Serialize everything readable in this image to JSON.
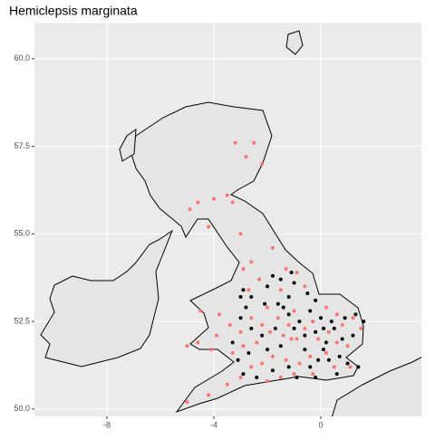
{
  "chart_data": {
    "type": "scatter",
    "title": "Hemiclepsis marginata",
    "xlim": [
      -10.71,
      3.76
    ],
    "ylim": [
      49.79,
      61.03
    ],
    "xticks": [
      -8,
      -4,
      0
    ],
    "yticks": [
      {
        "value": 50,
        "label": "50.0"
      },
      {
        "value": 52.5,
        "label": "52.5"
      },
      {
        "value": 55,
        "label": "55.0"
      },
      {
        "value": 57.5,
        "label": "57.5"
      },
      {
        "value": 60,
        "label": "60.0"
      }
    ],
    "grid": true,
    "series": [
      {
        "color": "#F8766D",
        "x": [
          -3.2,
          -2.5,
          -2.8,
          -2.2,
          -3.5,
          -4.0,
          -4.6,
          -4.9,
          -3.3,
          -4.2,
          -3.0,
          -2.6,
          -1.8,
          -2.9,
          -1.3,
          -0.9,
          -2.3,
          -2.7,
          -1.5,
          -0.6,
          -3.8,
          -3.4,
          -3.0,
          -2.6,
          -2.2,
          -2.0,
          -1.6,
          -1.2,
          -1.0,
          -0.6,
          -0.3,
          -1.9,
          -1.4,
          -0.9,
          -2.4,
          -2.9,
          -3.3,
          -4.1,
          -4.6,
          -3.9,
          0.3,
          0.8,
          1.2,
          1.5,
          0.6,
          1.0,
          0.2,
          -0.4,
          -0.8,
          -1.3,
          -1.8,
          -2.2,
          -2.6,
          -1.0,
          -0.3,
          0.5,
          1.1,
          -3.0,
          -3.5,
          -4.2,
          -2.0,
          -1.5,
          -5.0,
          -1.1,
          -0.1,
          0.2,
          0.6,
          -4.5,
          -5.0
        ],
        "values": [
          57.6,
          57.6,
          57.2,
          57.0,
          56.1,
          56.0,
          55.9,
          55.7,
          55.9,
          55.2,
          55.0,
          54.2,
          54.6,
          54.0,
          54.0,
          53.9,
          53.7,
          53.4,
          53.4,
          53.5,
          52.7,
          52.4,
          52.2,
          52.6,
          52.4,
          52.9,
          52.6,
          52.4,
          52.8,
          52.3,
          52.5,
          52.2,
          52.1,
          52.0,
          51.9,
          51.8,
          51.6,
          51.7,
          51.9,
          52.1,
          52.2,
          52.4,
          52.6,
          52.3,
          51.9,
          51.8,
          51.6,
          51.5,
          51.3,
          51.4,
          51.5,
          51.3,
          51.2,
          51.0,
          51.0,
          51.2,
          51.2,
          50.9,
          50.7,
          50.4,
          50.8,
          50.9,
          50.2,
          52.0,
          52.0,
          52.9,
          52.7,
          52.8,
          51.8
        ]
      },
      {
        "color": "#000000",
        "x": [
          -2.9,
          -2.6,
          -2.0,
          -1.5,
          -1.0,
          -0.5,
          -0.2,
          -1.2,
          -1.6,
          -2.1,
          -2.8,
          -3.0,
          -2.6,
          -2.2,
          -1.7,
          -1.2,
          -0.8,
          -0.4,
          0.0,
          0.4,
          0.9,
          1.3,
          1.6,
          1.2,
          0.8,
          0.5,
          0.1,
          -0.2,
          -0.6,
          -1.0,
          -1.5,
          -2.0,
          -2.7,
          -3.1,
          -2.9,
          -2.4,
          -1.8,
          -1.2,
          -0.6,
          -0.1,
          0.3,
          0.7,
          1.0,
          1.4,
          0.1,
          -0.4,
          -0.9,
          -3.0,
          -1.8,
          -1.1,
          0.2,
          -3.3,
          -0.2,
          0.6,
          -1.4
        ],
        "values": [
          53.4,
          53.2,
          53.5,
          53.7,
          53.6,
          53.3,
          53.1,
          53.2,
          53.0,
          53.0,
          52.9,
          52.6,
          52.3,
          52.1,
          52.3,
          52.7,
          52.5,
          52.8,
          52.6,
          52.5,
          52.6,
          52.7,
          52.5,
          52.1,
          52.0,
          52.3,
          52.3,
          52.2,
          52.1,
          52.3,
          51.8,
          51.7,
          51.6,
          51.4,
          51.0,
          50.9,
          51.1,
          51.2,
          51.7,
          51.4,
          51.4,
          51.5,
          51.3,
          51.2,
          51.7,
          51.2,
          50.9,
          53.2,
          53.8,
          53.9,
          51.9,
          51.9,
          50.9,
          51.0,
          52.9
        ]
      }
    ]
  }
}
